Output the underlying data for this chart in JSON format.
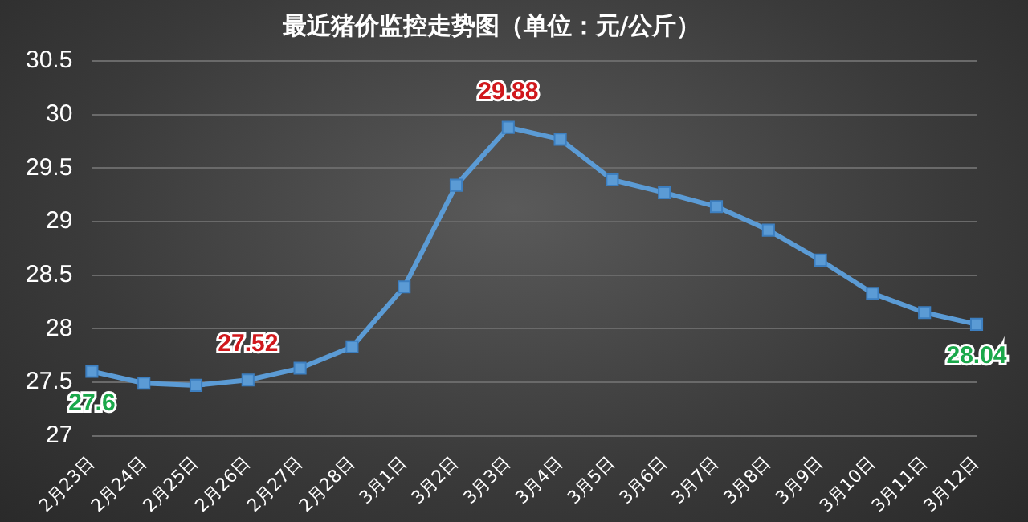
{
  "chart_data": {
    "type": "line",
    "title": "最近猪价监控走势图（单位：元/公斤）",
    "categories": [
      "2月23日",
      "2月24日",
      "2月25日",
      "2月26日",
      "2月27日",
      "2月28日",
      "3月1日",
      "3月2日",
      "3月3日",
      "3月4日",
      "3月5日",
      "3月6日",
      "3月7日",
      "3月8日",
      "3月9日",
      "3月10日",
      "3月11日",
      "3月12日"
    ],
    "series": [
      {
        "color": "#5b9bd5",
        "values": [
          27.6,
          27.49,
          27.47,
          27.52,
          27.63,
          27.83,
          28.39,
          29.34,
          29.88,
          29.77,
          29.39,
          29.27,
          29.14,
          28.92,
          28.64,
          28.33,
          28.15,
          28.04
        ],
        "value_labels": [
          "27.6",
          null,
          null,
          "27.52",
          null,
          null,
          null,
          null,
          "29.88",
          null,
          null,
          null,
          null,
          null,
          null,
          null,
          null,
          "28.04"
        ]
      }
    ],
    "ylim": [
      27,
      30.5
    ],
    "yticks": [
      27,
      27.5,
      28,
      28.5,
      29,
      29.5,
      30,
      30.5
    ],
    "grid": "y",
    "legend": false,
    "marker": "square",
    "line_style": "solid"
  }
}
